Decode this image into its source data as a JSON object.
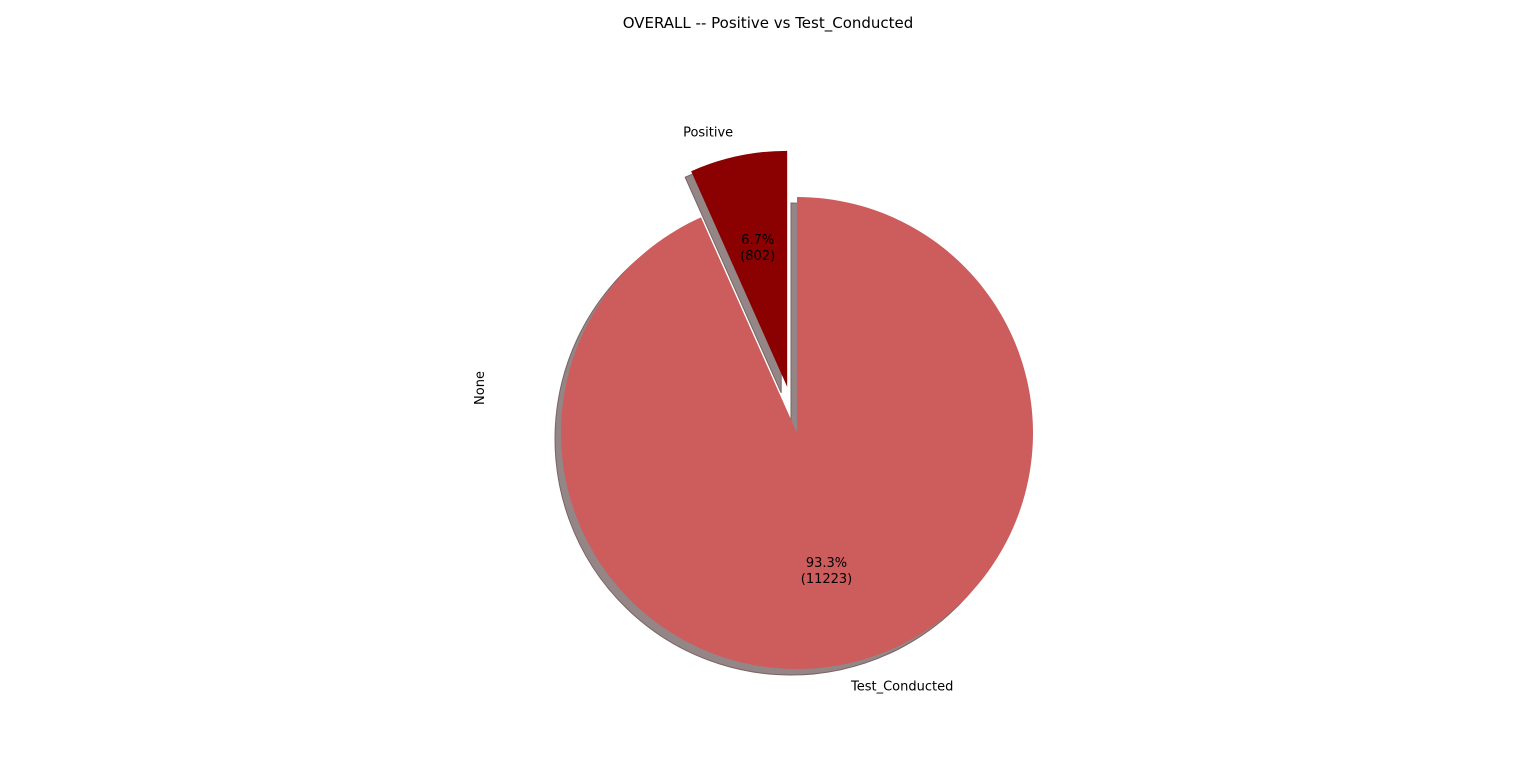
{
  "chart_data": {
    "type": "pie",
    "title": "OVERALL -- Positive vs Test_Conducted",
    "ylabel": "None",
    "start_angle_deg": 90,
    "counterclockwise": true,
    "shadow": true,
    "slices": [
      {
        "label": "Positive",
        "value": 802,
        "pct_text": "6.7%",
        "count_text": "(802)",
        "color": "#8b0000",
        "exploded": true
      },
      {
        "label": "Test_Conducted",
        "value": 11223,
        "pct_text": "93.3%",
        "count_text": "(11223)",
        "color": "#cd5c5c",
        "exploded": false
      }
    ],
    "shadow_color": "#948686"
  }
}
